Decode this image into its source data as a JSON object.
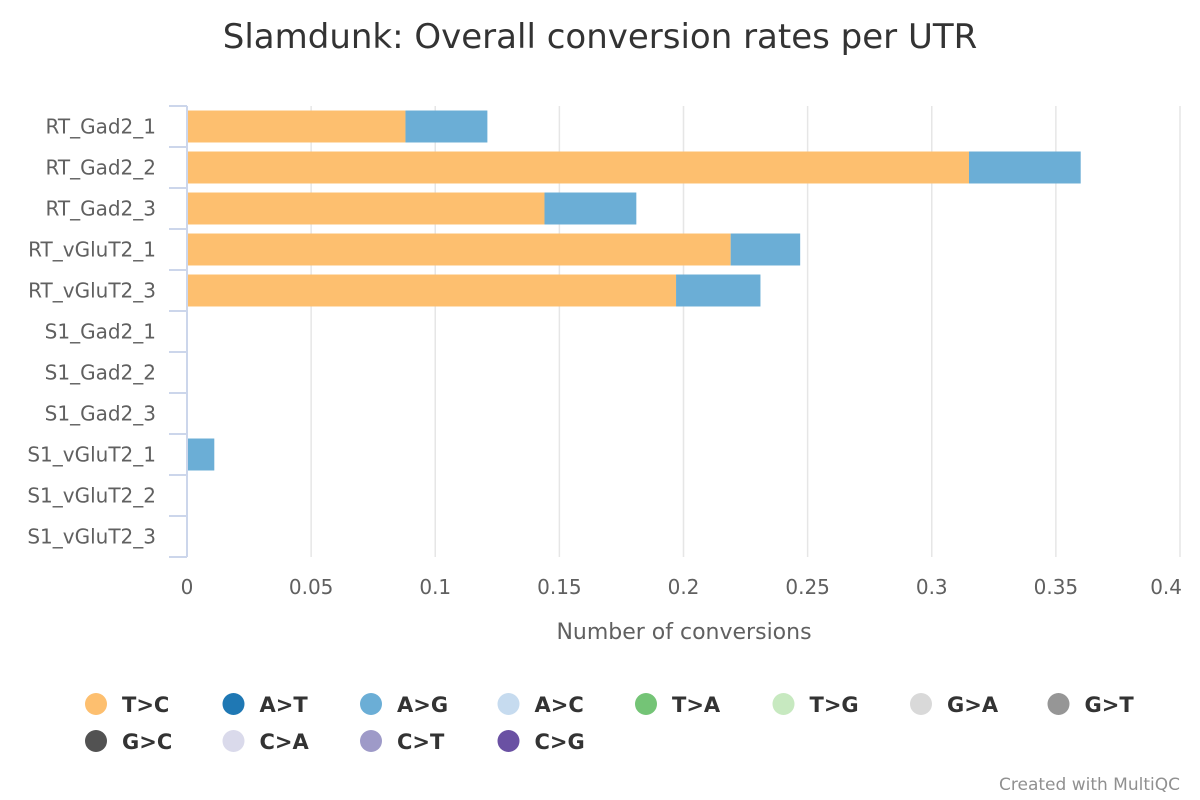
{
  "chart_data": {
    "type": "bar",
    "orientation": "horizontal",
    "stacked": true,
    "title": "Slamdunk: Overall conversion rates per UTR",
    "xlabel": "Number of conversions",
    "ylabel": "",
    "xlim": [
      0,
      0.4
    ],
    "x_ticks": [
      "0",
      "0.05",
      "0.1",
      "0.15",
      "0.2",
      "0.25",
      "0.3",
      "0.35",
      "0.4"
    ],
    "grid": true,
    "legend_position": "bottom",
    "categories": [
      "RT_Gad2_1",
      "RT_Gad2_2",
      "RT_Gad2_3",
      "RT_vGluT2_1",
      "RT_vGluT2_3",
      "S1_Gad2_1",
      "S1_Gad2_2",
      "S1_Gad2_3",
      "S1_vGluT2_1",
      "S1_vGluT2_2",
      "S1_vGluT2_3"
    ],
    "series": [
      {
        "name": "T>C",
        "color": "#fdbf6f",
        "values": [
          0.088,
          0.315,
          0.144,
          0.219,
          0.197,
          0,
          0,
          0,
          0,
          0,
          0
        ]
      },
      {
        "name": "A>T",
        "color": "#1f78b4",
        "values": [
          0,
          0,
          0,
          0,
          0,
          0,
          0,
          0,
          0,
          0,
          0
        ]
      },
      {
        "name": "A>G",
        "color": "#6baed6",
        "values": [
          0.033,
          0.045,
          0.037,
          0.028,
          0.034,
          0,
          0,
          0,
          0.011,
          0,
          0
        ]
      },
      {
        "name": "A>C",
        "color": "#c6dbef",
        "values": [
          0,
          0,
          0,
          0,
          0,
          0,
          0,
          0,
          0,
          0,
          0
        ]
      },
      {
        "name": "T>A",
        "color": "#74c476",
        "values": [
          0,
          0,
          0,
          0,
          0,
          0,
          0,
          0,
          0,
          0,
          0
        ]
      },
      {
        "name": "T>G",
        "color": "#c7e9c0",
        "values": [
          0,
          0,
          0,
          0,
          0,
          0,
          0,
          0,
          0,
          0,
          0
        ]
      },
      {
        "name": "G>A",
        "color": "#d9d9d9",
        "values": [
          0,
          0,
          0,
          0,
          0,
          0,
          0,
          0,
          0,
          0,
          0
        ]
      },
      {
        "name": "G>T",
        "color": "#969696",
        "values": [
          0,
          0,
          0,
          0,
          0,
          0,
          0,
          0,
          0,
          0,
          0
        ]
      },
      {
        "name": "G>C",
        "color": "#525252",
        "values": [
          0,
          0,
          0,
          0,
          0,
          0,
          0,
          0,
          0,
          0,
          0
        ]
      },
      {
        "name": "C>A",
        "color": "#dadaeb",
        "values": [
          0,
          0,
          0,
          0,
          0,
          0,
          0,
          0,
          0,
          0,
          0
        ]
      },
      {
        "name": "C>T",
        "color": "#9e9ac8",
        "values": [
          0,
          0,
          0,
          0,
          0,
          0,
          0,
          0,
          0,
          0,
          0
        ]
      },
      {
        "name": "C>G",
        "color": "#6a51a3",
        "values": [
          0,
          0,
          0,
          0,
          0,
          0,
          0,
          0,
          0,
          0,
          0
        ]
      }
    ]
  },
  "credit": "Created with MultiQC"
}
